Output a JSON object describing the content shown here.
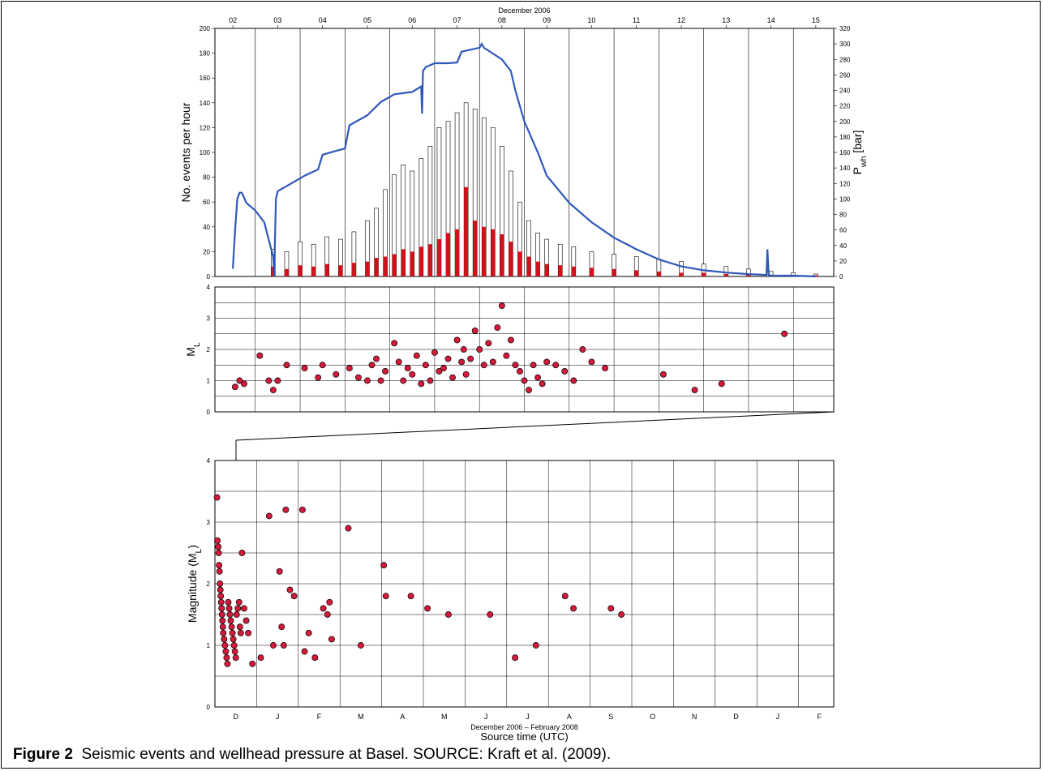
{
  "caption": {
    "label": "Figure 2",
    "text": "Seismic events and wellhead pressure at Basel. SOURCE: Kraft et al. (2009)."
  },
  "colors": {
    "pressure_line": "#2f58b8",
    "red_bars": "#d4101a",
    "gray_bars": "#ffffff",
    "dots": "#d41a3a"
  },
  "chart_data": [
    {
      "type": "bar",
      "title": "December 2006",
      "x_ticks": [
        "02",
        "03",
        "04",
        "05",
        "06",
        "07",
        "08",
        "09",
        "10",
        "11",
        "12",
        "13",
        "14",
        "15"
      ],
      "ylabel": "No. events per hour",
      "ylabel2": "P wh [bar]",
      "ylim": [
        0,
        200
      ],
      "y_ticks": [
        0,
        20,
        40,
        60,
        80,
        100,
        120,
        140,
        160,
        180,
        200
      ],
      "ylim2": [
        0,
        320
      ],
      "y2_ticks": [
        0,
        20,
        40,
        60,
        80,
        100,
        120,
        140,
        160,
        180,
        200,
        220,
        240,
        260,
        280,
        300,
        320
      ],
      "series": [
        {
          "kind": "bar",
          "style": "outlined",
          "x_day": [
            2.9,
            3.2,
            3.5,
            3.8,
            4.1,
            4.4,
            4.7,
            5.0,
            5.2,
            5.4,
            5.6,
            5.8,
            6.0,
            6.2,
            6.4,
            6.6,
            6.8,
            7.0,
            7.2,
            7.4,
            7.6,
            7.8,
            8.0,
            8.2,
            8.4,
            8.6,
            8.8,
            9.0,
            9.3,
            9.6,
            10.0,
            10.5,
            11.0,
            11.5,
            12.0,
            12.5,
            13.0,
            13.5,
            14.0,
            14.5,
            15.0
          ],
          "values": [
            22,
            20,
            28,
            26,
            32,
            30,
            36,
            45,
            55,
            70,
            82,
            90,
            85,
            95,
            105,
            120,
            125,
            132,
            140,
            135,
            128,
            120,
            105,
            85,
            60,
            45,
            35,
            30,
            26,
            24,
            20,
            18,
            16,
            14,
            12,
            10,
            8,
            6,
            4,
            3,
            2
          ]
        },
        {
          "kind": "bar",
          "style": "filled",
          "x_day": [
            2.9,
            3.2,
            3.5,
            3.8,
            4.1,
            4.4,
            4.7,
            5.0,
            5.2,
            5.4,
            5.6,
            5.8,
            6.0,
            6.2,
            6.4,
            6.6,
            6.8,
            7.0,
            7.2,
            7.4,
            7.6,
            7.8,
            8.0,
            8.2,
            8.4,
            8.6,
            8.8,
            9.0,
            9.3,
            9.6,
            10.0,
            10.5,
            11.0,
            11.5,
            12.0,
            12.5,
            13.0,
            13.5,
            14.0,
            14.5,
            15.0
          ],
          "values": [
            8,
            6,
            9,
            8,
            10,
            9,
            11,
            12,
            15,
            16,
            18,
            22,
            20,
            24,
            26,
            30,
            35,
            38,
            72,
            45,
            40,
            38,
            34,
            28,
            20,
            16,
            12,
            10,
            9,
            8,
            7,
            6,
            5,
            4,
            3,
            3,
            2,
            2,
            1,
            1,
            1
          ]
        },
        {
          "kind": "line",
          "axis": "right",
          "x_day": [
            2.0,
            2.05,
            2.1,
            2.15,
            2.2,
            2.3,
            2.5,
            2.7,
            2.9,
            2.92,
            2.96,
            3.0,
            3.3,
            3.6,
            3.9,
            4.0,
            4.3,
            4.5,
            4.6,
            5.0,
            5.3,
            5.6,
            6.0,
            6.2,
            6.22,
            6.24,
            6.3,
            6.5,
            6.8,
            7.0,
            7.1,
            7.5,
            7.55,
            7.6,
            8.0,
            8.2,
            8.3,
            8.5,
            8.8,
            9.0,
            9.5,
            10.0,
            10.5,
            11.0,
            11.5,
            12.0,
            12.5,
            13.0,
            13.5,
            13.9,
            13.92,
            13.95,
            14.0,
            14.5,
            15.0
          ],
          "values": [
            10,
            60,
            100,
            108,
            108,
            95,
            85,
            70,
            25,
            0,
            100,
            110,
            120,
            130,
            138,
            157,
            162,
            165,
            195,
            208,
            225,
            235,
            238,
            245,
            210,
            265,
            270,
            275,
            275,
            276,
            290,
            295,
            300,
            295,
            280,
            265,
            240,
            200,
            160,
            130,
            95,
            70,
            50,
            35,
            22,
            13,
            8,
            5,
            3,
            2,
            35,
            2,
            1,
            1,
            0
          ]
        }
      ]
    },
    {
      "type": "scatter",
      "ylabel": "ML",
      "ylim": [
        0,
        4
      ],
      "y_ticks": [
        0,
        1,
        2,
        3,
        4
      ],
      "x_day": [
        2.05,
        2.15,
        2.25,
        2.6,
        2.8,
        2.9,
        3.0,
        3.2,
        3.6,
        3.9,
        4.0,
        4.3,
        4.6,
        4.8,
        5.0,
        5.1,
        5.2,
        5.3,
        5.4,
        5.6,
        5.7,
        5.8,
        5.9,
        6.0,
        6.1,
        6.2,
        6.3,
        6.4,
        6.5,
        6.6,
        6.7,
        6.8,
        6.9,
        7.0,
        7.1,
        7.15,
        7.2,
        7.3,
        7.4,
        7.5,
        7.6,
        7.7,
        7.8,
        7.9,
        8.0,
        8.1,
        8.2,
        8.3,
        8.4,
        8.5,
        8.6,
        8.7,
        8.8,
        8.9,
        9.0,
        9.2,
        9.4,
        9.6,
        9.8,
        10.0,
        10.3,
        11.6,
        12.3,
        12.9,
        14.3
      ],
      "values": [
        0.8,
        1.0,
        0.9,
        1.8,
        1.0,
        0.7,
        1.0,
        1.5,
        1.4,
        1.1,
        1.5,
        1.2,
        1.4,
        1.1,
        1.0,
        1.5,
        1.7,
        1.0,
        1.3,
        2.2,
        1.6,
        1.0,
        1.4,
        1.2,
        1.8,
        0.9,
        1.5,
        1.0,
        1.9,
        1.3,
        1.4,
        1.7,
        1.1,
        2.3,
        1.6,
        2.0,
        1.2,
        1.7,
        2.6,
        2.0,
        1.5,
        2.2,
        1.6,
        2.7,
        3.4,
        1.8,
        2.3,
        1.5,
        1.3,
        1.0,
        0.7,
        1.5,
        1.1,
        0.9,
        1.6,
        1.5,
        1.3,
        1.0,
        2.0,
        1.6,
        1.4,
        1.2,
        0.7,
        0.9,
        2.5
      ]
    },
    {
      "type": "scatter",
      "xlabel": "December 2006 – February 2008",
      "xlabel2": "Source time (UTC)",
      "ylabel": "Magnitude (ML)",
      "ylim": [
        0,
        4
      ],
      "y_ticks": [
        0,
        1,
        2,
        3,
        4
      ],
      "x_ticks": [
        "D",
        "J",
        "F",
        "M",
        "A",
        "M",
        "J",
        "J",
        "A",
        "S",
        "O",
        "N",
        "D",
        "J",
        "F"
      ],
      "x_month": [
        0.05,
        0.06,
        0.08,
        0.09,
        0.1,
        0.11,
        0.12,
        0.13,
        0.14,
        0.15,
        0.16,
        0.17,
        0.18,
        0.19,
        0.2,
        0.22,
        0.24,
        0.26,
        0.28,
        0.3,
        0.32,
        0.34,
        0.36,
        0.38,
        0.4,
        0.42,
        0.44,
        0.46,
        0.48,
        0.5,
        0.52,
        0.55,
        0.58,
        0.6,
        0.62,
        0.65,
        0.7,
        0.75,
        0.8,
        0.9,
        1.1,
        1.3,
        1.4,
        1.55,
        1.6,
        1.65,
        1.7,
        1.8,
        1.9,
        2.1,
        2.15,
        2.25,
        2.4,
        2.6,
        2.7,
        2.75,
        2.8,
        3.2,
        3.5,
        4.05,
        4.1,
        4.7,
        5.1,
        5.6,
        6.6,
        7.2,
        7.7,
        8.4,
        8.6,
        9.5,
        9.75
      ],
      "values": [
        3.4,
        2.7,
        2.6,
        2.5,
        2.3,
        2.2,
        2.0,
        1.9,
        1.8,
        1.7,
        1.6,
        1.5,
        1.4,
        1.3,
        1.2,
        1.1,
        1.0,
        0.9,
        0.8,
        0.7,
        1.7,
        1.6,
        1.5,
        1.4,
        1.3,
        1.2,
        1.1,
        1.0,
        0.9,
        0.8,
        1.5,
        1.6,
        1.7,
        1.3,
        1.2,
        2.5,
        1.6,
        1.4,
        1.2,
        0.7,
        0.8,
        3.1,
        1.0,
        2.2,
        1.3,
        1.0,
        3.2,
        1.9,
        1.8,
        3.2,
        0.9,
        1.2,
        0.8,
        1.6,
        1.5,
        1.7,
        1.1,
        2.9,
        1.0,
        2.3,
        1.8,
        1.8,
        1.6,
        1.5,
        1.5,
        0.8,
        1.0,
        1.8,
        1.6,
        1.6,
        1.5
      ]
    }
  ]
}
